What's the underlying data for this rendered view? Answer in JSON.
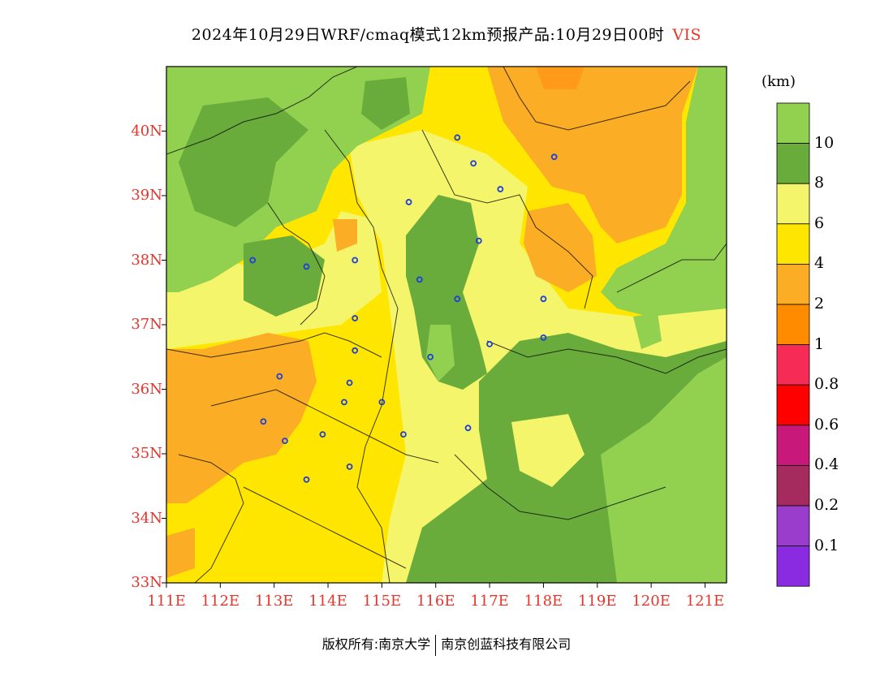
{
  "title": {
    "main": "2024年10月29日WRF/cmaq模式12km预报产品:10月29日00时",
    "variable": "VIS"
  },
  "axes": {
    "lat_labels": [
      "40N",
      "39N",
      "38N",
      "37N",
      "36N",
      "35N",
      "34N",
      "33N"
    ],
    "lon_labels": [
      "111E",
      "112E",
      "113E",
      "114E",
      "115E",
      "116E",
      "117E",
      "118E",
      "119E",
      "120E",
      "121E"
    ],
    "lat_range": [
      33,
      41
    ],
    "lon_range": [
      111,
      121.4
    ]
  },
  "colorbar": {
    "unit": "(km)",
    "labels": [
      "10",
      "8",
      "6",
      "4",
      "2",
      "1",
      "0.8",
      "0.6",
      "0.4",
      "0.2",
      "0.1"
    ],
    "colors": [
      "#92d050",
      "#6aac3c",
      "#f4f56a",
      "#ffe600",
      "#fbad26",
      "#ff8c00",
      "#f62b56",
      "#ff0000",
      "#c8187a",
      "#a52a5e",
      "#9a3ccc",
      "#8a2be2"
    ]
  },
  "stations": [
    [
      116.4,
      39.9
    ],
    [
      116.7,
      39.5
    ],
    [
      117.2,
      39.1
    ],
    [
      118.2,
      39.6
    ],
    [
      115.5,
      38.9
    ],
    [
      116.8,
      38.3
    ],
    [
      112.6,
      38.0
    ],
    [
      113.6,
      37.9
    ],
    [
      114.5,
      38.0
    ],
    [
      115.7,
      37.7
    ],
    [
      116.4,
      37.4
    ],
    [
      118.0,
      37.4
    ],
    [
      114.5,
      37.1
    ],
    [
      114.5,
      36.6
    ],
    [
      115.9,
      36.5
    ],
    [
      117.0,
      36.7
    ],
    [
      118.0,
      36.8
    ],
    [
      113.1,
      36.2
    ],
    [
      114.4,
      36.1
    ],
    [
      114.3,
      35.8
    ],
    [
      115.0,
      35.8
    ],
    [
      112.8,
      35.5
    ],
    [
      113.2,
      35.2
    ],
    [
      113.9,
      35.3
    ],
    [
      115.4,
      35.3
    ],
    [
      116.6,
      35.4
    ],
    [
      114.4,
      34.8
    ],
    [
      113.6,
      34.6
    ]
  ],
  "footer": {
    "left": "版权所有:南京大学",
    "right": "南京创蓝科技有限公司"
  }
}
